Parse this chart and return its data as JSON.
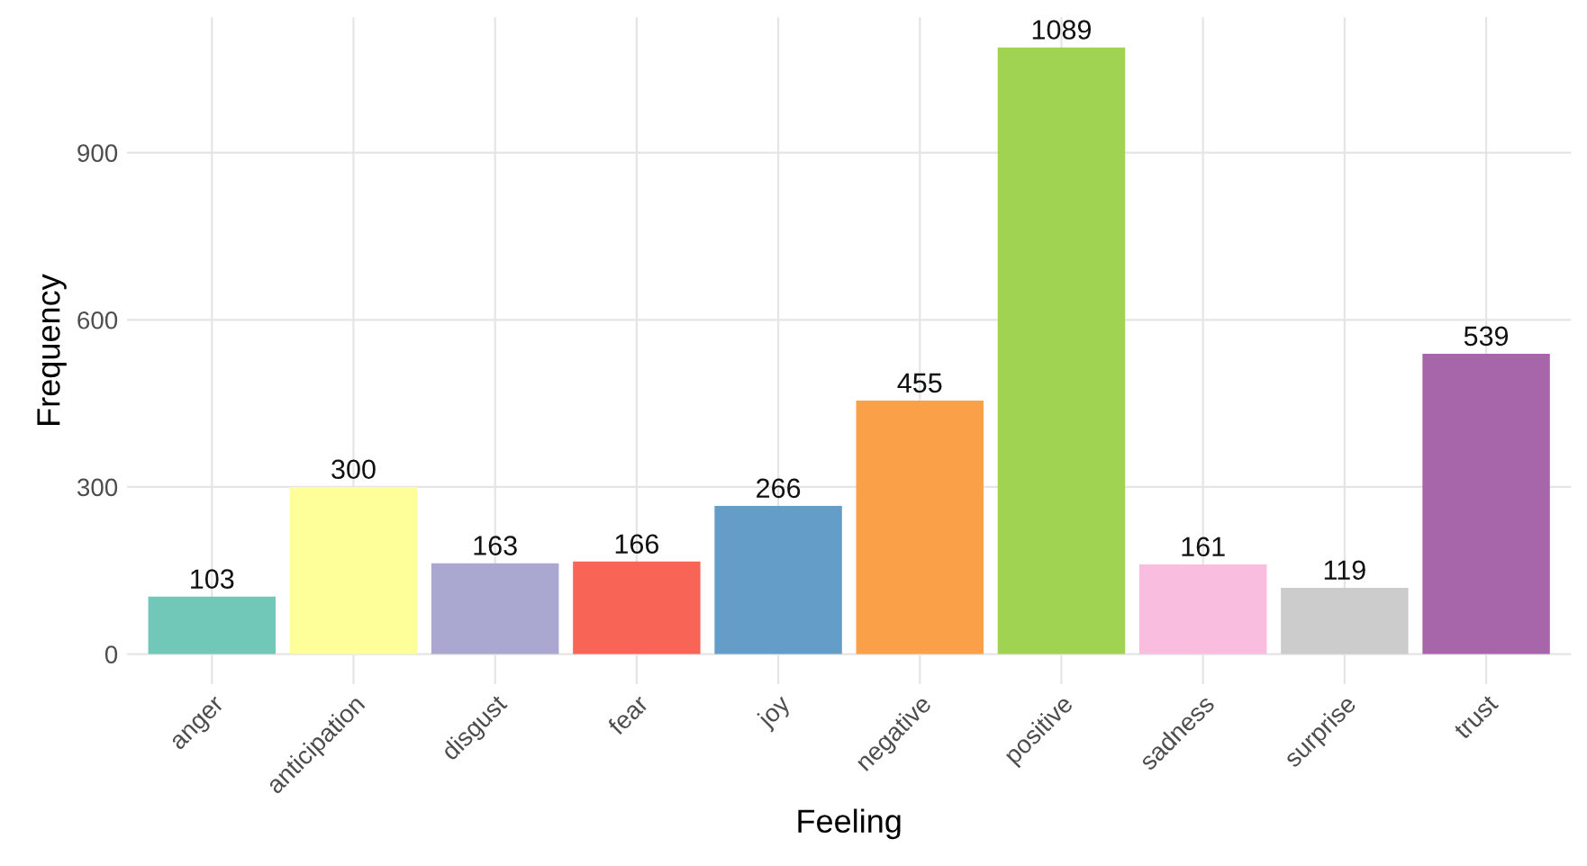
{
  "chart_data": {
    "type": "bar",
    "xlabel": "Feeling",
    "ylabel": "Frequency",
    "categories": [
      "anger",
      "anticipation",
      "disgust",
      "fear",
      "joy",
      "negative",
      "positive",
      "sadness",
      "surprise",
      "trust"
    ],
    "values": [
      103,
      300,
      163,
      166,
      266,
      455,
      1089,
      161,
      119,
      539
    ],
    "colors": [
      "#72c8b8",
      "#ffff99",
      "#aaa8d0",
      "#f86556",
      "#649ec8",
      "#f9a048",
      "#a0d352",
      "#f9bde0",
      "#cccccc",
      "#a866aa"
    ],
    "ylim": [
      -54,
      1143
    ],
    "yticks": [
      0,
      300,
      600,
      900
    ],
    "grid": true,
    "data_labels": true
  }
}
